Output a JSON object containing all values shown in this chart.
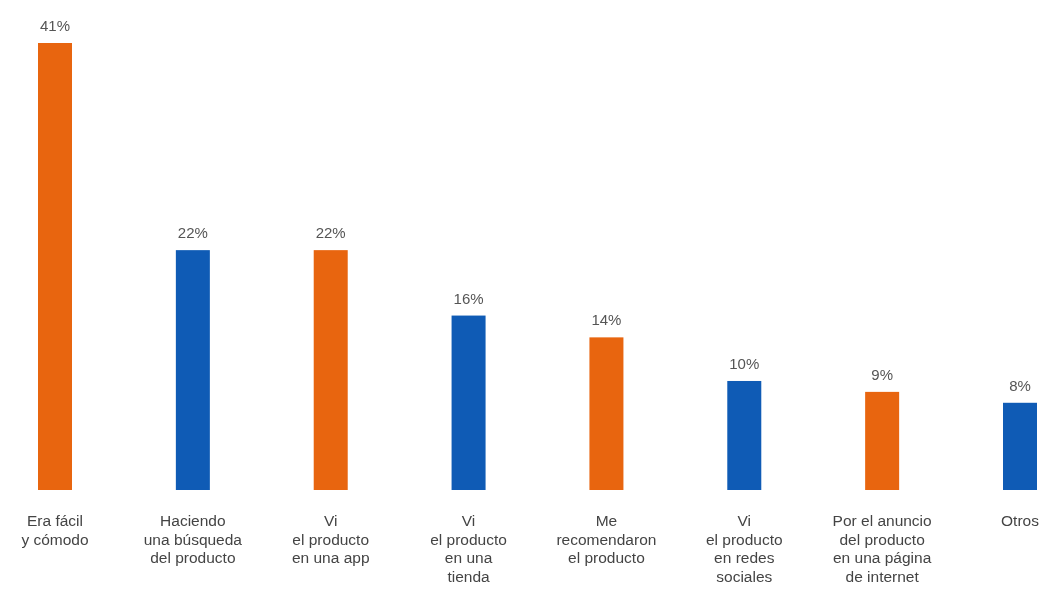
{
  "chart_data": {
    "type": "bar",
    "categories": [
      "Era fácil\ny cómodo",
      "Haciendo\nuna búsqueda\ndel producto",
      "Vi\nel producto\nen una app",
      "Vi\nel producto\nen una\ntienda",
      "Me\nrecomendaron\nel producto",
      "Vi\nel producto\nen redes\nsociales",
      "Por el anuncio\ndel producto\nen una página\nde internet",
      "Otros"
    ],
    "values": [
      41,
      22,
      22,
      16,
      14,
      10,
      9,
      8
    ],
    "value_labels": [
      "41%",
      "22%",
      "22%",
      "16%",
      "14%",
      "10%",
      "9%",
      "8%"
    ],
    "colors": [
      "#e8650f",
      "#0f5bb5",
      "#e8650f",
      "#0f5bb5",
      "#e8650f",
      "#0f5bb5",
      "#e8650f",
      "#0f5bb5"
    ]
  }
}
